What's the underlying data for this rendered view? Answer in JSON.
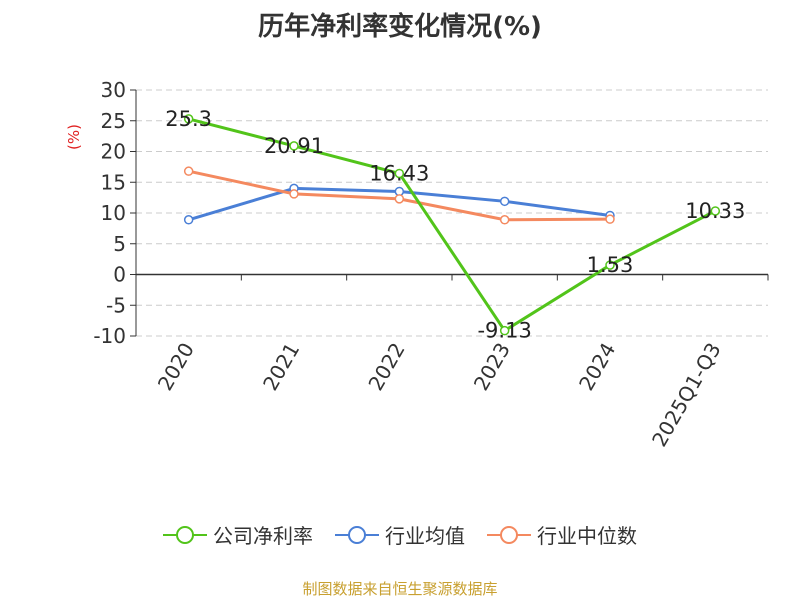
{
  "chart_data": {
    "type": "line",
    "title": "历年净利率变化情况(%)",
    "ylabel": "(%)",
    "categories": [
      "2020",
      "2021",
      "2022",
      "2023",
      "2024",
      "2025Q1-Q3"
    ],
    "ylim": [
      -10,
      30
    ],
    "yticks": [
      "30",
      "25",
      "20",
      "15",
      "10",
      "5",
      "0",
      "-5",
      "-10"
    ],
    "grid": true,
    "legend_position": "bottom",
    "series": [
      {
        "name": "公司净利率",
        "color": "#52c41a",
        "values": [
          25.3,
          20.91,
          16.43,
          -9.13,
          1.53,
          10.33
        ],
        "labels": [
          "25.3",
          "20.91",
          "16.43",
          "-9.13",
          "1.53",
          "10.33"
        ]
      },
      {
        "name": "行业均值",
        "color": "#4a7fd6",
        "values": [
          8.9,
          14.0,
          13.5,
          11.9,
          9.6,
          null
        ]
      },
      {
        "name": "行业中位数",
        "color": "#f4895f",
        "values": [
          16.8,
          13.1,
          12.3,
          8.9,
          9.0,
          null
        ]
      }
    ]
  },
  "footer": "制图数据来自恒生聚源数据库"
}
